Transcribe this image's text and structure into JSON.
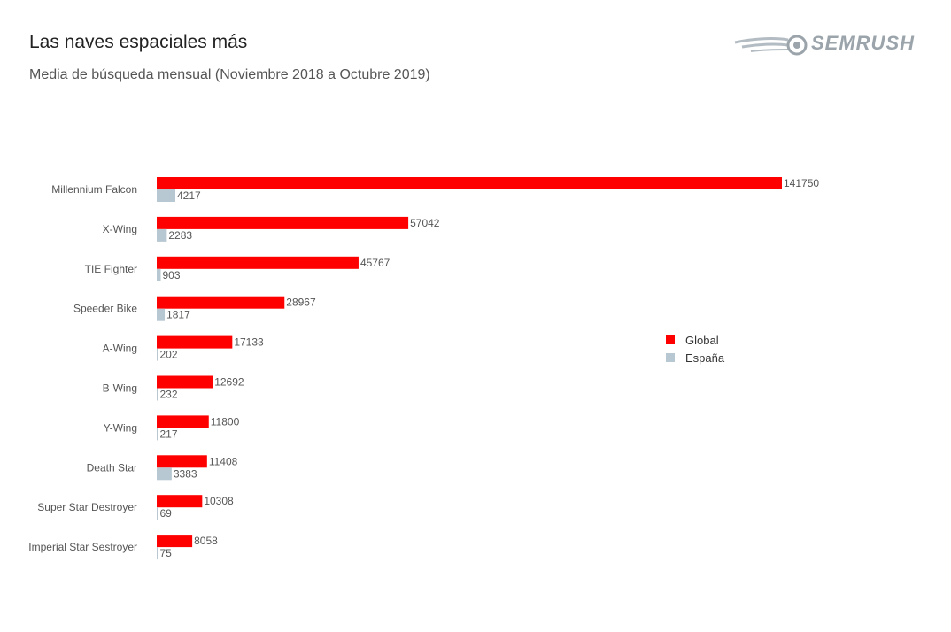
{
  "title": "Las naves espaciales más",
  "subtitle": "Media de búsqueda mensual (Noviembre 2018 a Octubre 2019)",
  "logo": {
    "text": "SEMRUSH"
  },
  "colors": {
    "global": "#ff0000",
    "espana": "#b8c8d2"
  },
  "chart_data": {
    "type": "bar",
    "orientation": "horizontal",
    "categories": [
      "Millennium Falcon",
      "X-Wing",
      "TIE Fighter",
      "Speeder Bike",
      "A-Wing",
      "B-Wing",
      "Y-Wing",
      "Death Star",
      "Super Star Destroyer",
      "Imperial Star Sestroyer"
    ],
    "series": [
      {
        "name": "Global",
        "color": "#ff0000",
        "values": [
          141750,
          57042,
          45767,
          28967,
          17133,
          12692,
          11800,
          11408,
          10308,
          8058
        ]
      },
      {
        "name": "España",
        "color": "#b8c8d2",
        "values": [
          4217,
          2283,
          903,
          1817,
          202,
          232,
          217,
          3383,
          69,
          75
        ]
      }
    ],
    "title": "Las naves espaciales más",
    "subtitle": "Media de búsqueda mensual (Noviembre 2018 a Octubre 2019)",
    "legend_position": "right",
    "grid": false,
    "xlim": [
      0,
      141750
    ]
  }
}
